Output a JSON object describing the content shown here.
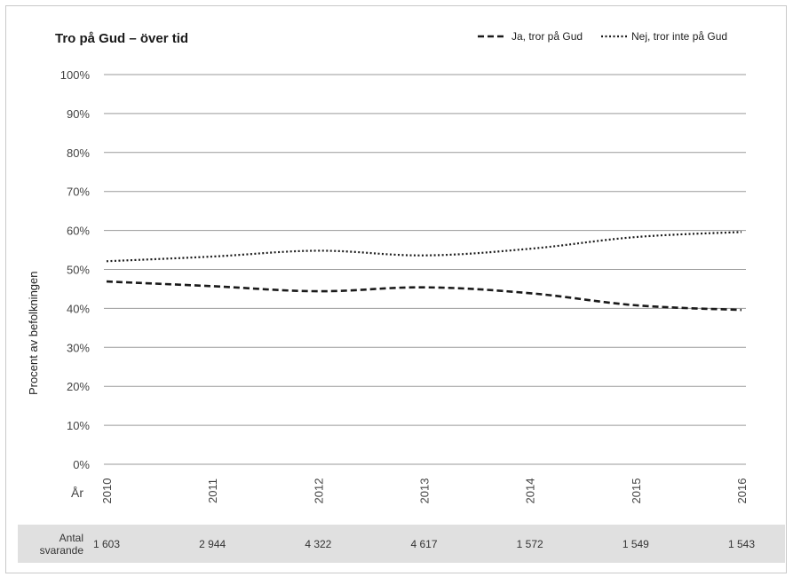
{
  "chart_data": {
    "type": "line",
    "title": "Tro på Gud – över tid",
    "ylabel": "Procent av befolkningen",
    "xlabel": "År",
    "ylim": [
      0,
      100
    ],
    "y_ticks": [
      "0%",
      "10%",
      "20%",
      "30%",
      "40%",
      "50%",
      "60%",
      "70%",
      "80%",
      "90%",
      "100%"
    ],
    "x": [
      "2010",
      "2011",
      "2012",
      "2013",
      "2014",
      "2015",
      "2016"
    ],
    "series": [
      {
        "name": "Ja, tror på Gud",
        "style": "dashed",
        "color": "#1a1a1a",
        "values": [
          46.9,
          45.7,
          44.4,
          45.4,
          43.9,
          40.8,
          39.6
        ]
      },
      {
        "name": "Nej, tror inte på Gud",
        "style": "dotted",
        "color": "#1a1a1a",
        "values": [
          52.1,
          53.3,
          54.8,
          53.6,
          55.3,
          58.3,
          59.6
        ]
      }
    ],
    "grid": "horizontal",
    "legend_position": "top-right",
    "respondents_label": "Antal svarande",
    "respondents": [
      "1 603",
      "2 944",
      "4 322",
      "4 617",
      "1 572",
      "1 549",
      "1 543"
    ]
  }
}
